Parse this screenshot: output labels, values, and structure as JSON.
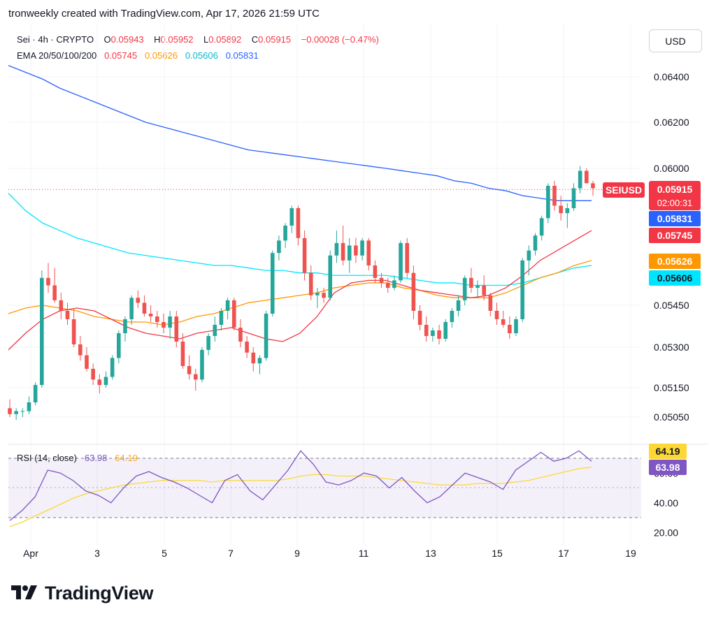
{
  "header": {
    "text": "tronweekly created with TradingView.com, Apr 17, 2026 21:59 UTC"
  },
  "currency_button": "USD",
  "legend": {
    "symbol": "Sei · 4h · CRYPTO",
    "open_label": "O",
    "open": "0.05943",
    "high_label": "H",
    "high": "0.05952",
    "low_label": "L",
    "low": "0.05892",
    "close_label": "C",
    "close": "0.05915",
    "change": "−0.00028 (−0.47%)",
    "ema_label": "EMA 20/50/100/200",
    "ema20": "0.05745",
    "ema50": "0.05626",
    "ema100": "0.05606",
    "ema200": "0.05831"
  },
  "rsi_legend": {
    "label": "RSI (14, close)",
    "rsi": "63.98",
    "ma": "64.19"
  },
  "badges": {
    "symbol": "SEIUSD",
    "price": "0.05915",
    "countdown": "02:00:31",
    "ema200": "0.05831",
    "ema20": "0.05745",
    "ema50": "0.05626",
    "ema100": "0.05606",
    "rsi_ma": "64.19",
    "rsi": "63.98"
  },
  "brand": {
    "name": "TradingView"
  },
  "colors": {
    "up": "#26a69a",
    "down": "#ef5350",
    "ema20": "#f23645",
    "ema50": "#ff9800",
    "ema100": "#00e5ff",
    "ema200": "#2962ff",
    "rsi": "#7e57c2",
    "rsi_ma": "#fdd835"
  },
  "chart_data": {
    "type": "candlestick",
    "price_ticks": [
      "0.06400",
      "0.06200",
      "0.06000",
      "0.05450",
      "0.05300",
      "0.05150",
      "0.05050"
    ],
    "price_tick_values": [
      0.064,
      0.062,
      0.06,
      0.0545,
      0.053,
      0.0515,
      0.0505
    ],
    "date_labels": [
      "Apr",
      "3",
      "5",
      "7",
      "9",
      "11",
      "13",
      "15",
      "17",
      "19"
    ],
    "rsi_ticks": [
      "60.00",
      "40.00",
      "20.00"
    ],
    "rsi_levels": [
      70,
      50,
      30
    ],
    "last_price": 0.05915,
    "candles": [
      [
        0.0508,
        0.0511,
        0.0505,
        0.0506
      ],
      [
        0.0506,
        0.0508,
        0.0504,
        0.0507
      ],
      [
        0.0507,
        0.0508,
        0.0505,
        0.0507
      ],
      [
        0.0507,
        0.0512,
        0.0506,
        0.051
      ],
      [
        0.051,
        0.0517,
        0.0509,
        0.0516
      ],
      [
        0.0516,
        0.0559,
        0.0515,
        0.0556
      ],
      [
        0.0556,
        0.0562,
        0.055,
        0.0553
      ],
      [
        0.0553,
        0.056,
        0.0546,
        0.0547
      ],
      [
        0.0547,
        0.055,
        0.054,
        0.0543
      ],
      [
        0.0543,
        0.0546,
        0.0538,
        0.054
      ],
      [
        0.054,
        0.0544,
        0.053,
        0.0531
      ],
      [
        0.0531,
        0.0534,
        0.0525,
        0.0527
      ],
      [
        0.0527,
        0.053,
        0.0521,
        0.0522
      ],
      [
        0.0522,
        0.0524,
        0.0516,
        0.0518
      ],
      [
        0.0518,
        0.052,
        0.0513,
        0.0516
      ],
      [
        0.0516,
        0.0521,
        0.0515,
        0.0519
      ],
      [
        0.0519,
        0.0527,
        0.0518,
        0.0526
      ],
      [
        0.0526,
        0.0536,
        0.0524,
        0.0535
      ],
      [
        0.0535,
        0.0541,
        0.0532,
        0.054
      ],
      [
        0.054,
        0.0549,
        0.0538,
        0.0548
      ],
      [
        0.0548,
        0.0551,
        0.0544,
        0.0546
      ],
      [
        0.0546,
        0.0549,
        0.0541,
        0.0542
      ],
      [
        0.0542,
        0.0545,
        0.0539,
        0.0541
      ],
      [
        0.0541,
        0.0543,
        0.0537,
        0.0539
      ],
      [
        0.0539,
        0.0542,
        0.0535,
        0.0537
      ],
      [
        0.0537,
        0.0543,
        0.0533,
        0.0541
      ],
      [
        0.0541,
        0.0543,
        0.053,
        0.0532
      ],
      [
        0.0532,
        0.0535,
        0.0522,
        0.0523
      ],
      [
        0.0523,
        0.0527,
        0.0518,
        0.052
      ],
      [
        0.052,
        0.0522,
        0.0514,
        0.0518
      ],
      [
        0.0518,
        0.053,
        0.0517,
        0.0529
      ],
      [
        0.0529,
        0.0535,
        0.0527,
        0.0534
      ],
      [
        0.0534,
        0.0541,
        0.0532,
        0.0538
      ],
      [
        0.0538,
        0.0544,
        0.0536,
        0.0543
      ],
      [
        0.0543,
        0.0548,
        0.054,
        0.0547
      ],
      [
        0.0547,
        0.0548,
        0.0536,
        0.0537
      ],
      [
        0.0537,
        0.054,
        0.053,
        0.0532
      ],
      [
        0.0532,
        0.0534,
        0.0526,
        0.0528
      ],
      [
        0.0528,
        0.053,
        0.0521,
        0.0524
      ],
      [
        0.0524,
        0.0527,
        0.052,
        0.0526
      ],
      [
        0.0526,
        0.0543,
        0.0525,
        0.0542
      ],
      [
        0.0542,
        0.0567,
        0.0541,
        0.0566
      ],
      [
        0.0566,
        0.0573,
        0.0563,
        0.0571
      ],
      [
        0.0571,
        0.0578,
        0.0568,
        0.0577
      ],
      [
        0.0577,
        0.0585,
        0.0574,
        0.0584
      ],
      [
        0.0584,
        0.0585,
        0.0569,
        0.0572
      ],
      [
        0.0572,
        0.0575,
        0.0555,
        0.0558
      ],
      [
        0.0558,
        0.0561,
        0.0547,
        0.0549
      ],
      [
        0.0549,
        0.0552,
        0.0544,
        0.055
      ],
      [
        0.055,
        0.0552,
        0.0546,
        0.0548
      ],
      [
        0.0548,
        0.0567,
        0.0547,
        0.0565
      ],
      [
        0.0565,
        0.0575,
        0.0562,
        0.057
      ],
      [
        0.057,
        0.0577,
        0.0561,
        0.0563
      ],
      [
        0.0563,
        0.0572,
        0.0558,
        0.0569
      ],
      [
        0.0569,
        0.0572,
        0.0562,
        0.0565
      ],
      [
        0.0565,
        0.0572,
        0.0563,
        0.0571
      ],
      [
        0.0571,
        0.0572,
        0.0559,
        0.0561
      ],
      [
        0.0561,
        0.0563,
        0.0554,
        0.0556
      ],
      [
        0.0556,
        0.0558,
        0.0552,
        0.0554
      ],
      [
        0.0554,
        0.0556,
        0.055,
        0.0552
      ],
      [
        0.0552,
        0.0557,
        0.0551,
        0.0555
      ],
      [
        0.0555,
        0.0571,
        0.0554,
        0.057
      ],
      [
        0.057,
        0.0572,
        0.0556,
        0.0558
      ],
      [
        0.0558,
        0.0561,
        0.054,
        0.0543
      ],
      [
        0.0543,
        0.0545,
        0.0536,
        0.0538
      ],
      [
        0.0538,
        0.0541,
        0.0532,
        0.0534
      ],
      [
        0.0534,
        0.0537,
        0.0532,
        0.0536
      ],
      [
        0.0536,
        0.0538,
        0.0531,
        0.0533
      ],
      [
        0.0533,
        0.054,
        0.0532,
        0.0539
      ],
      [
        0.0539,
        0.0544,
        0.0537,
        0.0543
      ],
      [
        0.0543,
        0.0549,
        0.0541,
        0.0547
      ],
      [
        0.0547,
        0.0557,
        0.0545,
        0.0556
      ],
      [
        0.0556,
        0.056,
        0.055,
        0.0552
      ],
      [
        0.0552,
        0.0555,
        0.0548,
        0.0553
      ],
      [
        0.0553,
        0.0557,
        0.0547,
        0.0549
      ],
      [
        0.0549,
        0.055,
        0.0541,
        0.0543
      ],
      [
        0.0543,
        0.0546,
        0.0538,
        0.054
      ],
      [
        0.054,
        0.0543,
        0.0537,
        0.0538
      ],
      [
        0.0538,
        0.0541,
        0.0533,
        0.0535
      ],
      [
        0.0535,
        0.0541,
        0.0534,
        0.054
      ],
      [
        0.054,
        0.0564,
        0.0539,
        0.0563
      ],
      [
        0.0563,
        0.0569,
        0.0557,
        0.0567
      ],
      [
        0.0567,
        0.0574,
        0.0565,
        0.0573
      ],
      [
        0.0573,
        0.0581,
        0.0571,
        0.058
      ],
      [
        0.058,
        0.0594,
        0.0578,
        0.0593
      ],
      [
        0.0593,
        0.0595,
        0.0583,
        0.0585
      ],
      [
        0.0585,
        0.0589,
        0.0579,
        0.0582
      ],
      [
        0.0582,
        0.0586,
        0.0576,
        0.0584
      ],
      [
        0.0584,
        0.0594,
        0.0583,
        0.0592
      ],
      [
        0.0592,
        0.0601,
        0.059,
        0.0599
      ],
      [
        0.0599,
        0.06,
        0.0594,
        0.0594
      ],
      [
        0.0594,
        0.0595,
        0.0589,
        0.0592
      ]
    ],
    "ema20": [
      0.0529,
      0.0535,
      0.054,
      0.0543,
      0.0544,
      0.0543,
      0.054,
      0.0537,
      0.0535,
      0.0534,
      0.0533,
      0.0535,
      0.0536,
      0.0537,
      0.0535,
      0.0533,
      0.0532,
      0.0535,
      0.0541,
      0.055,
      0.0554,
      0.0555,
      0.0555,
      0.0553,
      0.0551,
      0.055,
      0.0549,
      0.0548,
      0.0549,
      0.0552,
      0.0557,
      0.0563,
      0.0567,
      0.0571,
      0.0575
    ],
    "ema50": [
      0.0542,
      0.0544,
      0.0545,
      0.0544,
      0.0543,
      0.0541,
      0.054,
      0.0539,
      0.0539,
      0.0538,
      0.0539,
      0.0541,
      0.0542,
      0.0544,
      0.0546,
      0.0547,
      0.0548,
      0.0549,
      0.055,
      0.0552,
      0.0553,
      0.0554,
      0.0554,
      0.0552,
      0.0551,
      0.0549,
      0.0548,
      0.0548,
      0.0548,
      0.055,
      0.0553,
      0.0556,
      0.0558,
      0.0561,
      0.0563
    ],
    "ema100": [
      0.059,
      0.0583,
      0.0578,
      0.0575,
      0.0572,
      0.057,
      0.0568,
      0.0566,
      0.0565,
      0.0564,
      0.0563,
      0.0562,
      0.0561,
      0.0561,
      0.056,
      0.0559,
      0.0559,
      0.0558,
      0.0558,
      0.0557,
      0.0557,
      0.0557,
      0.0557,
      0.0556,
      0.0555,
      0.0554,
      0.0554,
      0.0553,
      0.0553,
      0.0553,
      0.0554,
      0.0556,
      0.0558,
      0.056,
      0.0561
    ],
    "ema200": [
      0.0645,
      0.0642,
      0.0639,
      0.0635,
      0.0632,
      0.0629,
      0.0626,
      0.0623,
      0.062,
      0.0618,
      0.0616,
      0.0614,
      0.0612,
      0.061,
      0.0608,
      0.0607,
      0.0606,
      0.0605,
      0.0604,
      0.0603,
      0.0602,
      0.0601,
      0.06,
      0.0599,
      0.0598,
      0.0597,
      0.0595,
      0.0594,
      0.0592,
      0.0591,
      0.0589,
      0.0588,
      0.0587,
      0.0587,
      0.0587
    ],
    "rsi": [
      28,
      35,
      44,
      62,
      60,
      55,
      48,
      45,
      40,
      50,
      58,
      61,
      57,
      54,
      50,
      45,
      40,
      55,
      59,
      48,
      42,
      52,
      62,
      75,
      66,
      54,
      52,
      55,
      60,
      58,
      50,
      57,
      48,
      40,
      44,
      52,
      60,
      57,
      54,
      49,
      62,
      68,
      74,
      68,
      70,
      75,
      68
    ],
    "rsi_ma": [
      24,
      27,
      31,
      35,
      39,
      43,
      46,
      48,
      50,
      52,
      53,
      54,
      55,
      55,
      55,
      55,
      54,
      55,
      55,
      55,
      55,
      55,
      56,
      58,
      59,
      59,
      58,
      58,
      58,
      57,
      56,
      55,
      54,
      53,
      52,
      52,
      52,
      53,
      53,
      53,
      54,
      55,
      57,
      59,
      61,
      63,
      64
    ]
  }
}
